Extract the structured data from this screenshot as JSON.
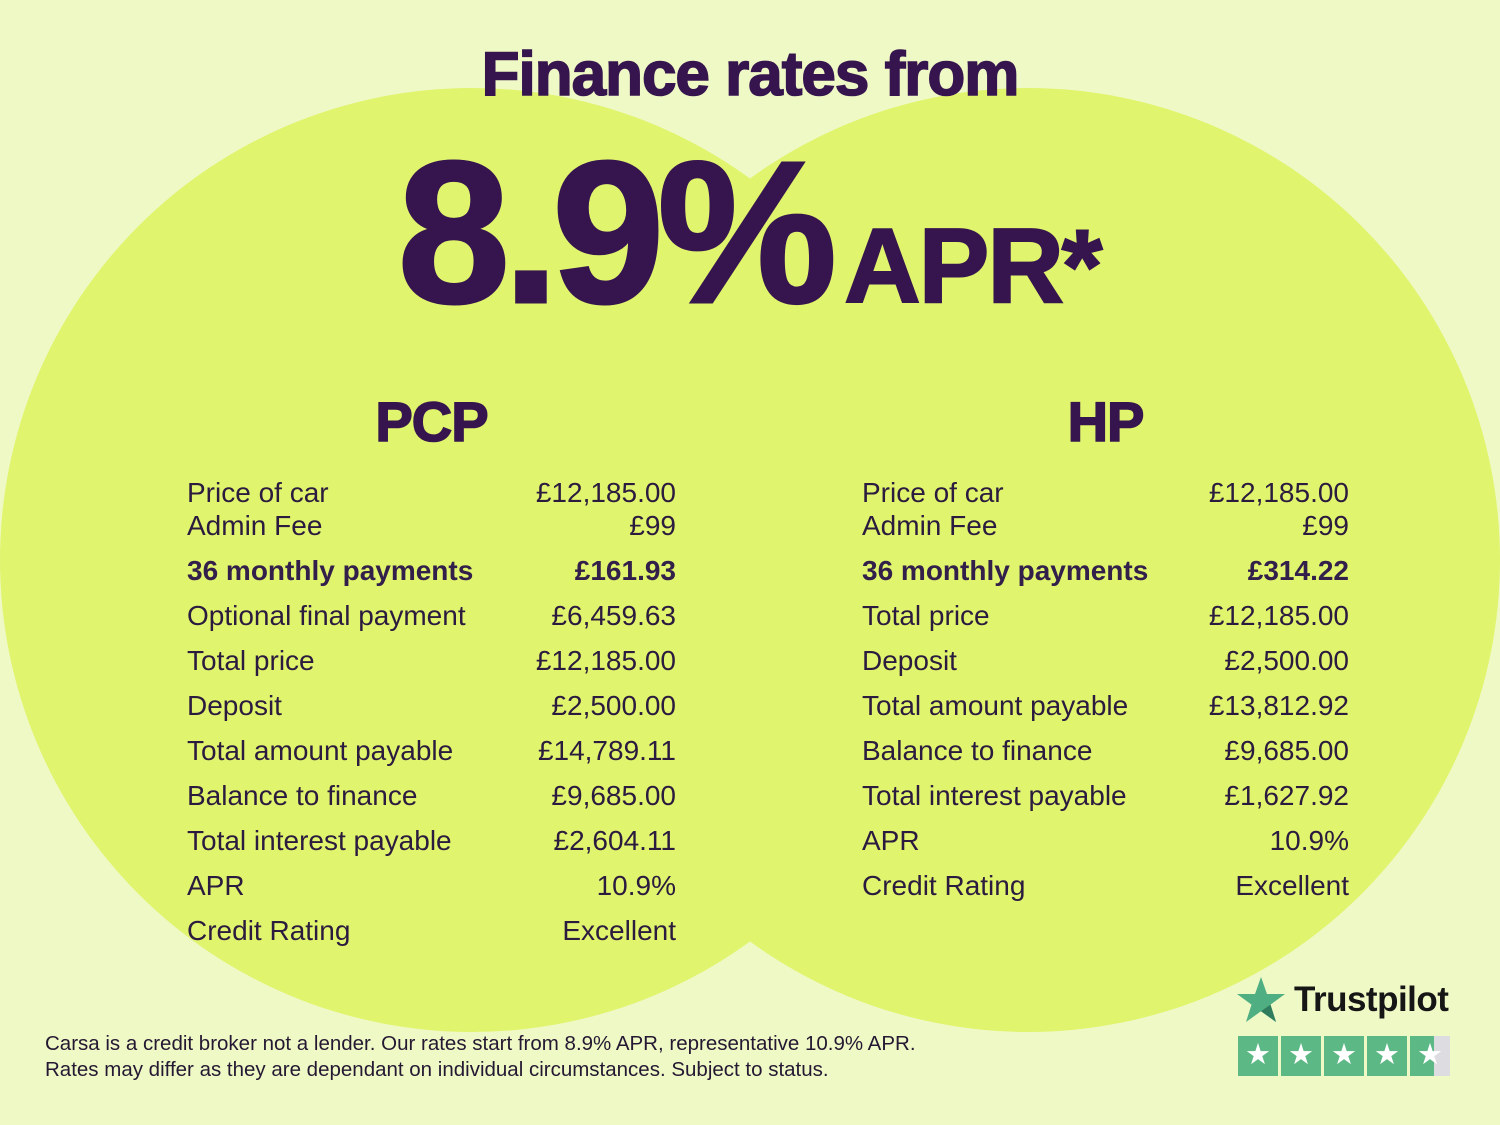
{
  "header": {
    "title": "Finance rates from",
    "rate": "8.9%",
    "unit": "APR",
    "asterisk": "*"
  },
  "tables": {
    "pcp": {
      "title": "PCP",
      "rows": [
        {
          "label": "Price of car",
          "value": "£12,185.00"
        },
        {
          "label": "Admin Fee",
          "value": "£99",
          "tight": true
        },
        {
          "label": "36 monthly payments",
          "value": "£161.93",
          "bold": true
        },
        {
          "label": "Optional final payment",
          "value": "£6,459.63"
        },
        {
          "label": "Total price",
          "value": "£12,185.00"
        },
        {
          "label": "Deposit",
          "value": "£2,500.00"
        },
        {
          "label": "Total amount payable",
          "value": "£14,789.11"
        },
        {
          "label": "Balance to finance",
          "value": "£9,685.00"
        },
        {
          "label": "Total interest payable",
          "value": "£2,604.11"
        },
        {
          "label": "APR",
          "value": "10.9%"
        },
        {
          "label": "Credit Rating",
          "value": "Excellent"
        }
      ]
    },
    "hp": {
      "title": "HP",
      "rows": [
        {
          "label": "Price of car",
          "value": "£12,185.00"
        },
        {
          "label": "Admin Fee",
          "value": "£99",
          "tight": true
        },
        {
          "label": "36 monthly payments",
          "value": "£314.22",
          "bold": true
        },
        {
          "label": "Total price",
          "value": "£12,185.00"
        },
        {
          "label": "Deposit",
          "value": "£2,500.00"
        },
        {
          "label": "Total amount payable",
          "value": "£13,812.92"
        },
        {
          "label": "Balance to finance",
          "value": "£9,685.00"
        },
        {
          "label": "Total interest payable",
          "value": "£1,627.92"
        },
        {
          "label": "APR",
          "value": "10.9%"
        },
        {
          "label": "Credit Rating",
          "value": "Excellent"
        }
      ]
    }
  },
  "disclaimer": {
    "lines": [
      "Carsa is a credit broker not a lender. Our rates start from 8.9% APR, representative 10.9% APR.",
      "Rates may differ as they are dependant on individual circumstances. Subject to status."
    ]
  },
  "trustpilot": {
    "brand": "Trustpilot",
    "stars": {
      "total": 5,
      "full": 4,
      "last_fill_percent": 60,
      "glyph": "★"
    }
  },
  "colors": {
    "background": "#eff9c6",
    "circle_green": "#e1f46e",
    "heading_purple": "#36154e",
    "body_text": "#2b1b3e",
    "trustpilot_star_green": "#4fae82",
    "trustpilot_star_shadow": "#2f7d5c",
    "star_box_green": "#5cb885",
    "star_box_gray": "#dcdce1",
    "star_glyph_white": "#ffffff"
  }
}
